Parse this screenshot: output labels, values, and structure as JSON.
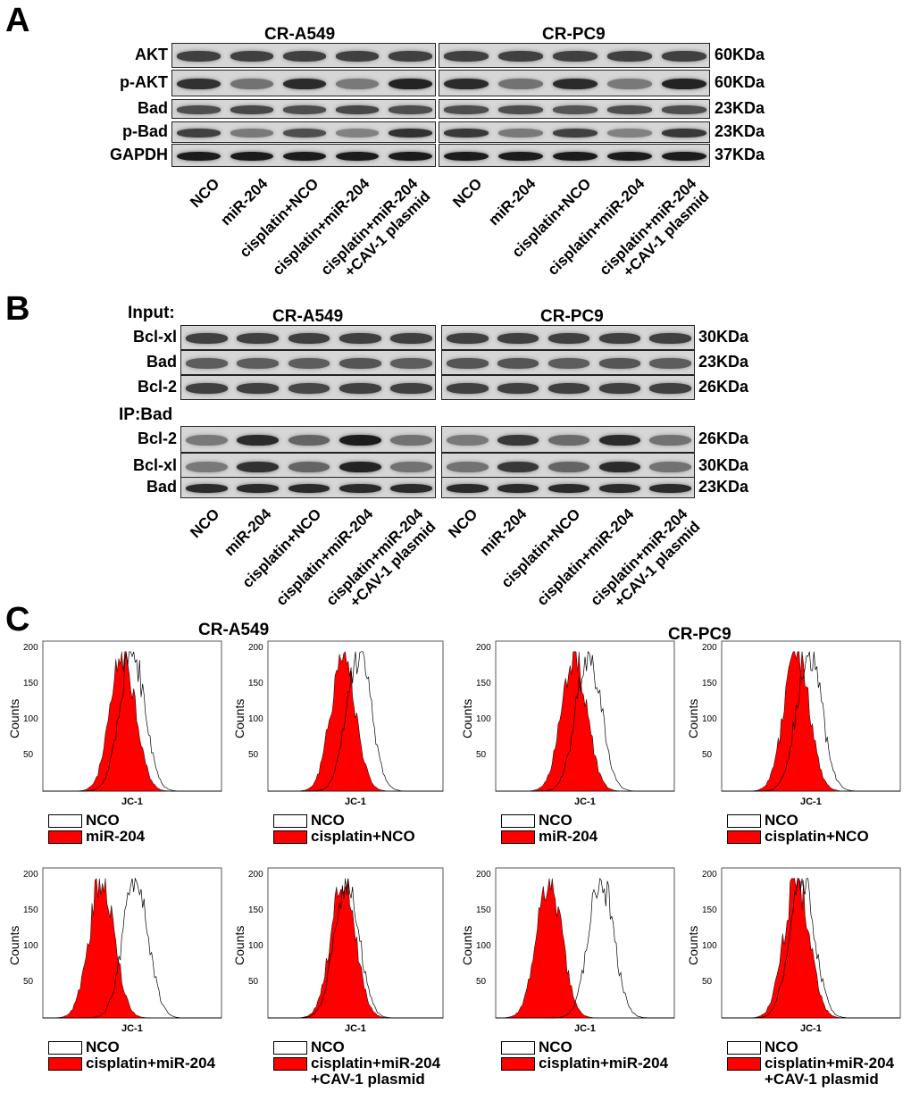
{
  "panelA": {
    "letter": "A",
    "groups": [
      "CR-A549",
      "CR-PC9"
    ],
    "rows": [
      {
        "label": "AKT",
        "kda": "60KDa"
      },
      {
        "label": "p-AKT",
        "kda": "60KDa"
      },
      {
        "label": "Bad",
        "kda": "23KDa"
      },
      {
        "label": "p-Bad",
        "kda": "23KDa"
      },
      {
        "label": "GAPDH",
        "kda": "37KDa"
      }
    ],
    "lanes": [
      "NCO",
      "miR-204",
      "cisplatin+NCO",
      "cisplatin+miR-204",
      "cisplatin+miR-204",
      "+CAV-1 plasmid"
    ]
  },
  "panelB": {
    "letter": "B",
    "input_label": "Input:",
    "ip_label": "IP:Bad",
    "groups": [
      "CR-A549",
      "CR-PC9"
    ],
    "input_rows": [
      {
        "label": "Bcl-xl",
        "kda": "30KDa"
      },
      {
        "label": "Bad",
        "kda": "23KDa"
      },
      {
        "label": "Bcl-2",
        "kda": "26KDa"
      }
    ],
    "ip_rows": [
      {
        "label": "Bcl-2",
        "kda": "26KDa"
      },
      {
        "label": "Bcl-xl",
        "kda": "30KDa"
      },
      {
        "label": "Bad",
        "kda": "23KDa"
      }
    ]
  },
  "panelC": {
    "letter": "C",
    "groups": [
      "CR-A549",
      "CR-PC9"
    ],
    "ylabel": "Counts",
    "xlabel": "JC-1",
    "yticks": [
      "200",
      "150",
      "100",
      "50"
    ],
    "control": "NCO",
    "plots": [
      {
        "treat": "miR-204",
        "treat2": ""
      },
      {
        "treat": "cisplatin+NCO",
        "treat2": ""
      },
      {
        "treat": "miR-204",
        "treat2": ""
      },
      {
        "treat": "cisplatin+NCO",
        "treat2": ""
      },
      {
        "treat": "cisplatin+miR-204",
        "treat2": ""
      },
      {
        "treat": "cisplatin+miR-204",
        "treat2": "+CAV-1 plasmid"
      },
      {
        "treat": "cisplatin+miR-204",
        "treat2": ""
      },
      {
        "treat": "cisplatin+miR-204",
        "treat2": "+CAV-1 plasmid"
      }
    ]
  },
  "colors": {
    "fill": "#ff0000",
    "band": "#2a2a2a",
    "blot_bg": "#d6d6d6"
  }
}
